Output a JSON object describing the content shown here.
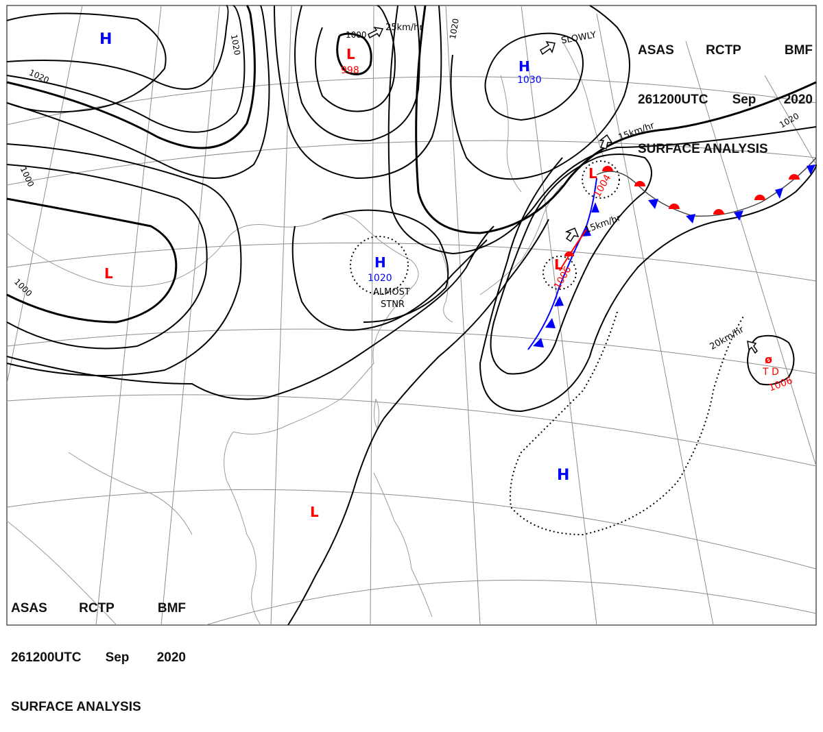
{
  "header": {
    "agency": "ASAS",
    "station": "RCTP",
    "unit": "BMF",
    "time": "261200UTC",
    "month": "Sep",
    "year": "2020",
    "title": "SURFACE ANALYSIS"
  },
  "isobar_labels": {
    "a": "1020",
    "b": "1020",
    "c": "1020",
    "d": "1020",
    "e": "1000",
    "f": "1000",
    "g": "1000",
    "h": "1020"
  },
  "pressure_systems": {
    "h_nw": {
      "letter": "H"
    },
    "l_north": {
      "letter": "L",
      "value": "998"
    },
    "h_ne": {
      "letter": "H",
      "value": "1030"
    },
    "l_west": {
      "letter": "L"
    },
    "h_center": {
      "letter": "H",
      "value": "1020"
    },
    "l_front_a": {
      "letter": "L",
      "value": "1004"
    },
    "l_front_b": {
      "letter": "L",
      "value": "1006"
    },
    "h_south": {
      "letter": "H"
    },
    "l_south": {
      "letter": "L"
    },
    "td": {
      "symbol": "ø",
      "label": "T D",
      "value": "1006"
    }
  },
  "motion_labels": {
    "l_north": "25km/hr",
    "h_ne": "SLOWLY",
    "front_north": "15km/hr",
    "front_south": "15km/hr",
    "td": "20km/hr",
    "h_center_line1": "ALMOST",
    "h_center_line2": "STNR"
  },
  "colors": {
    "isobar": "#000000",
    "coast": "#9a9a9a",
    "grid": "#8c8c8c",
    "low": "#ff0000",
    "high": "#0000ff",
    "warm_front": "#ff0000",
    "cold_front": "#0000ff"
  }
}
